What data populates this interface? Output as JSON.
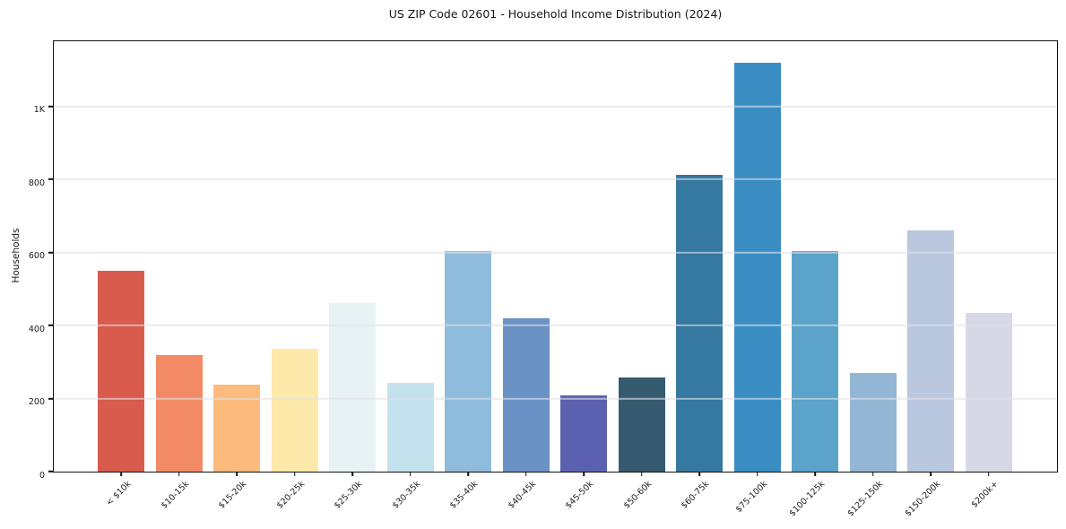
{
  "title": "US ZIP Code 02601 - Household Income Distribution (2024)",
  "colors": {
    "background": "#ffffff",
    "spine": "#111111",
    "grid": "#e9e9ec",
    "grid_overlay_rgba": "rgba(225,225,230,0.62)",
    "text": "#1a1a1a"
  },
  "chart_data": {
    "type": "bar",
    "title": "US ZIP Code 02601 - Household Income Distribution (2024)",
    "xlabel": "",
    "ylabel": "Households",
    "legend": "none",
    "grid": "horizontal",
    "ylim": [
      0,
      1178
    ],
    "categories": [
      "< $10k",
      "$10-15k",
      "$15-20k",
      "$20-25k",
      "$25-30k",
      "$30-35k",
      "$35-40k",
      "$40-45k",
      "$45-50k",
      "$50-60k",
      "$60-75k",
      "$75-100k",
      "$100-125k",
      "$125-150k",
      "$150-200k",
      "$200k+"
    ],
    "values": [
      550,
      320,
      238,
      336,
      462,
      243,
      604,
      419,
      209,
      257,
      812,
      1120,
      604,
      271,
      661,
      434
    ],
    "bar_colors": [
      "#d85b4e",
      "#f28a66",
      "#fcbb7d",
      "#fde9a9",
      "#e7f2f5",
      "#c3e2ee",
      "#8fbcdc",
      "#6b92c5",
      "#5b61ae",
      "#365b70",
      "#3578a0",
      "#3a8dc3",
      "#5ba3c8",
      "#93b6d5",
      "#b9c7df",
      "#d7d8e5"
    ],
    "yticks": [
      {
        "value": 0,
        "label": "0"
      },
      {
        "value": 200,
        "label": "200"
      },
      {
        "value": 400,
        "label": "400"
      },
      {
        "value": 600,
        "label": "600"
      },
      {
        "value": 800,
        "label": "800"
      },
      {
        "value": 1000,
        "label": "1K"
      }
    ]
  }
}
